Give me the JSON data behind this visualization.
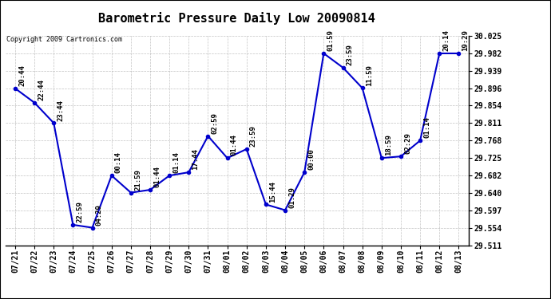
{
  "title": "Barometric Pressure Daily Low 20090814",
  "copyright": "Copyright 2009 Cartronics.com",
  "x_labels": [
    "07/21",
    "07/22",
    "07/23",
    "07/24",
    "07/25",
    "07/26",
    "07/27",
    "07/28",
    "07/29",
    "07/30",
    "07/31",
    "08/01",
    "08/02",
    "08/03",
    "08/04",
    "08/05",
    "08/06",
    "08/07",
    "08/08",
    "08/09",
    "08/10",
    "08/11",
    "08/12",
    "08/13"
  ],
  "y_values": [
    29.896,
    29.861,
    29.811,
    29.561,
    29.554,
    29.682,
    29.64,
    29.647,
    29.682,
    29.69,
    29.779,
    29.725,
    29.747,
    29.611,
    29.597,
    29.69,
    29.982,
    29.947,
    29.897,
    29.725,
    29.729,
    29.768,
    29.982,
    29.982
  ],
  "point_labels": [
    "20:44",
    "22:44",
    "23:44",
    "22:59",
    "04:29",
    "00:14",
    "21:59",
    "01:44",
    "01:14",
    "17:44",
    "02:59",
    "01:44",
    "23:59",
    "15:44",
    "01:29",
    "00:00",
    "01:59",
    "23:59",
    "11:59",
    "18:59",
    "02:29",
    "01:14",
    "20:14",
    "19:29"
  ],
  "line_color": "#0000cc",
  "marker_color": "#0000cc",
  "background_color": "#ffffff",
  "grid_color": "#aaaaaa",
  "text_color": "#000000",
  "title_fontsize": 11,
  "tick_fontsize": 7,
  "label_fontsize": 6.5,
  "ylim_min": 29.511,
  "ylim_max": 30.025,
  "yticks": [
    29.511,
    29.554,
    29.597,
    29.64,
    29.682,
    29.725,
    29.768,
    29.811,
    29.854,
    29.896,
    29.939,
    29.982,
    30.025
  ]
}
